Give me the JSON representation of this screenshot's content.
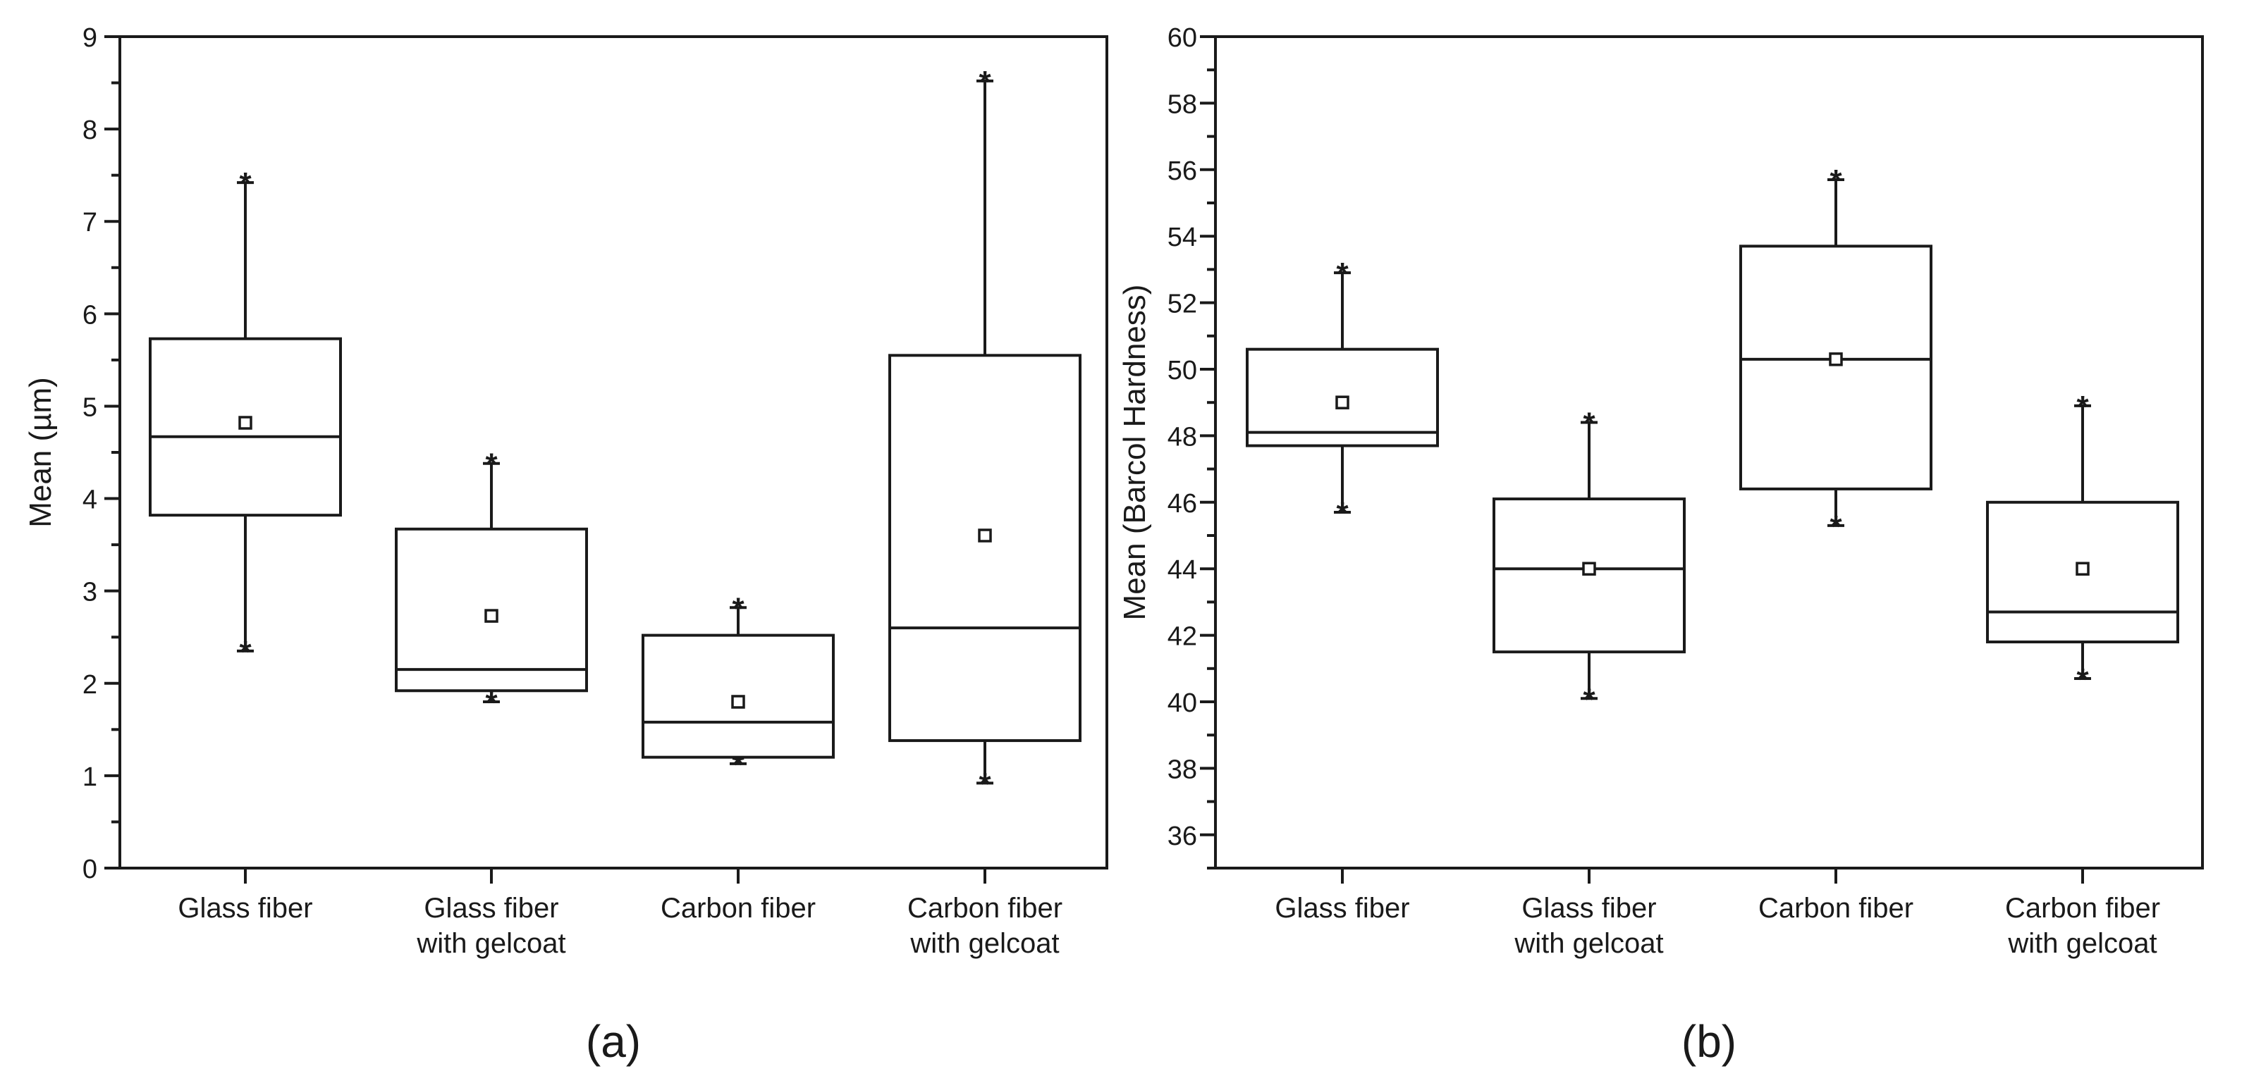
{
  "chart_data": [
    {
      "type": "box",
      "panel_label": "(a)",
      "ylabel": "Mean (µm)",
      "xlabel": "",
      "ylim": [
        0,
        9
      ],
      "y_major_ticks": [
        0,
        1,
        2,
        3,
        4,
        5,
        6,
        7,
        8,
        9
      ],
      "y_minor_step": 0.5,
      "categories": [
        [
          "Glass fiber"
        ],
        [
          "Glass fiber",
          "with gelcoat"
        ],
        [
          "Carbon fiber"
        ],
        [
          "Carbon fiber",
          "with gelcoat"
        ]
      ],
      "boxes": [
        {
          "q1": 3.82,
          "median": 4.67,
          "q3": 5.73,
          "whisker_low": 2.35,
          "whisker_high": 7.42,
          "mean": 4.82
        },
        {
          "q1": 1.92,
          "median": 2.15,
          "q3": 3.67,
          "whisker_low": 1.8,
          "whisker_high": 4.38,
          "mean": 2.73
        },
        {
          "q1": 1.2,
          "median": 1.58,
          "q3": 2.52,
          "whisker_low": 1.13,
          "whisker_high": 2.82,
          "mean": 1.8
        },
        {
          "q1": 1.38,
          "median": 2.6,
          "q3": 5.55,
          "whisker_low": 0.92,
          "whisker_high": 8.52,
          "mean": 3.6
        }
      ]
    },
    {
      "type": "box",
      "panel_label": "(b)",
      "ylabel": "Mean (Barcol Hardness)",
      "xlabel": "",
      "ylim": [
        35,
        60
      ],
      "y_major_ticks": [
        36,
        38,
        40,
        42,
        44,
        46,
        48,
        50,
        52,
        54,
        56,
        58,
        60
      ],
      "y_minor_step": 1,
      "categories": [
        [
          "Glass fiber"
        ],
        [
          "Glass fiber",
          "with gelcoat"
        ],
        [
          "Carbon fiber"
        ],
        [
          "Carbon fiber",
          "with gelcoat"
        ]
      ],
      "boxes": [
        {
          "q1": 47.7,
          "median": 48.1,
          "q3": 50.6,
          "whisker_low": 45.7,
          "whisker_high": 52.9,
          "mean": 49.0
        },
        {
          "q1": 41.5,
          "median": 44.0,
          "q3": 46.1,
          "whisker_low": 40.1,
          "whisker_high": 48.4,
          "mean": 44.0
        },
        {
          "q1": 46.4,
          "median": 50.3,
          "q3": 53.7,
          "whisker_low": 45.3,
          "whisker_high": 55.7,
          "mean": 50.3
        },
        {
          "q1": 41.8,
          "median": 42.7,
          "q3": 46.0,
          "whisker_low": 40.7,
          "whisker_high": 48.9,
          "mean": 44.0
        }
      ]
    }
  ]
}
